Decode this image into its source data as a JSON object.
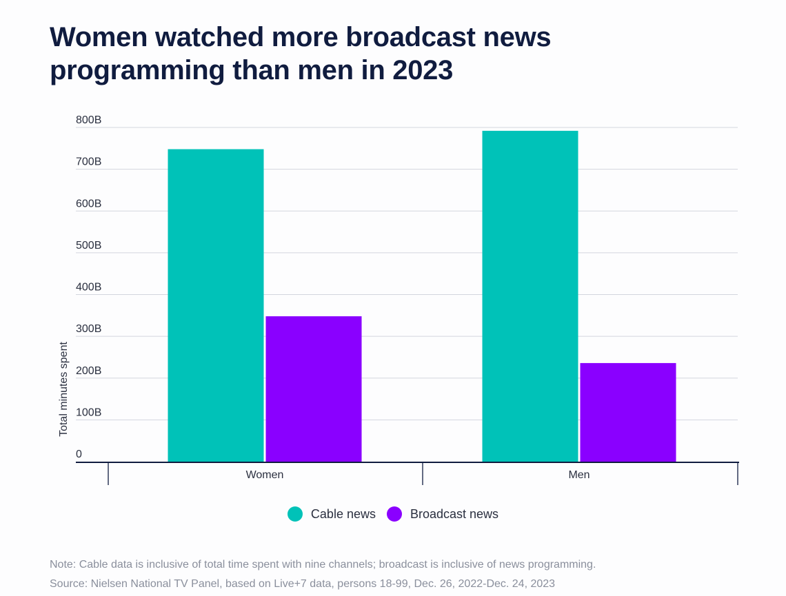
{
  "title_lines": [
    "Women watched more broadcast news",
    "programming than men in 2023"
  ],
  "chart_data": {
    "type": "bar",
    "categories": [
      "Women",
      "Men"
    ],
    "series": [
      {
        "name": "Cable news",
        "values": [
          748,
          792
        ],
        "color": "#00c2b8"
      },
      {
        "name": "Broadcast news",
        "values": [
          348,
          236
        ],
        "color": "#8a00ff"
      }
    ],
    "ylabel": "Total minutes spent",
    "xlabel": "",
    "ylim": [
      0,
      800
    ],
    "yticks": [
      0,
      100,
      200,
      300,
      400,
      500,
      600,
      700,
      800
    ],
    "ytick_labels": [
      "0",
      "100B",
      "200B",
      "300B",
      "400B",
      "500B",
      "600B",
      "700B",
      "800B"
    ],
    "value_unit": "billion minutes",
    "grid": true,
    "legend_position": "bottom-center"
  },
  "footnote": {
    "note": "Note: Cable data is inclusive of total time spent with nine channels; broadcast is inclusive of news programming.",
    "source": "Source: Nielsen National TV Panel, based on Live+7 data, persons 18-99, Dec. 26, 2022-Dec. 24, 2023"
  }
}
